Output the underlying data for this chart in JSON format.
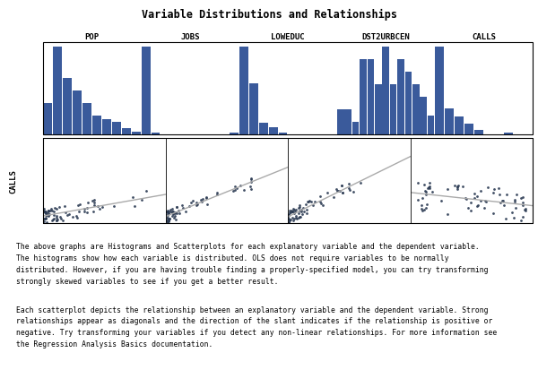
{
  "title": "Variable Distributions and Relationships",
  "hist_labels": [
    "POP",
    "JOBS",
    "LOWEDUC",
    "DST2URBCEN",
    "CALLS"
  ],
  "scatter_labels": [
    "POP",
    "JOBS",
    "LOWEDUC",
    "DST2URBCEN"
  ],
  "y_label": "CALLS",
  "bar_color": "#3A5A9B",
  "scatter_color": "#2B3A52",
  "line_color": "#AAAAAA",
  "pop_hist": [
    10,
    28,
    18,
    14,
    10,
    6,
    5,
    4,
    2,
    1
  ],
  "jobs_hist": [
    58,
    1,
    0,
    0,
    0,
    0,
    0,
    0,
    0,
    1
  ],
  "loweduc_hist": [
    38,
    22,
    5,
    3,
    1,
    0,
    0,
    0,
    0,
    0
  ],
  "dst2urbcen_hist": [
    4,
    4,
    2,
    12,
    12,
    8,
    14,
    8,
    12,
    10,
    8,
    6,
    3
  ],
  "calls_hist": [
    40,
    12,
    8,
    5,
    2,
    0,
    0,
    1,
    0,
    0
  ],
  "paragraph1": "The above graphs are Histograms and Scatterplots for each explanatory variable and the dependent variable.\nThe histograms show how each variable is distributed. OLS does not require variables to be normally\ndistributed. However, if you are having trouble finding a properly-specified model, you can try transforming\nstrongly skewed variables to see if you get a better result.",
  "paragraph2": "Each scatterplot depicts the relationship between an explanatory variable and the dependent variable. Strong\nrelationships appear as diagonals and the direction of the slant indicates if the relationship is positive or\nnegative. Try transforming your variables if you detect any non-linear relationships. For more information see\nthe Regression Analysis Basics documentation.",
  "title_fontsize": 8.5,
  "label_fontsize": 6.5,
  "text_fontsize": 5.8
}
